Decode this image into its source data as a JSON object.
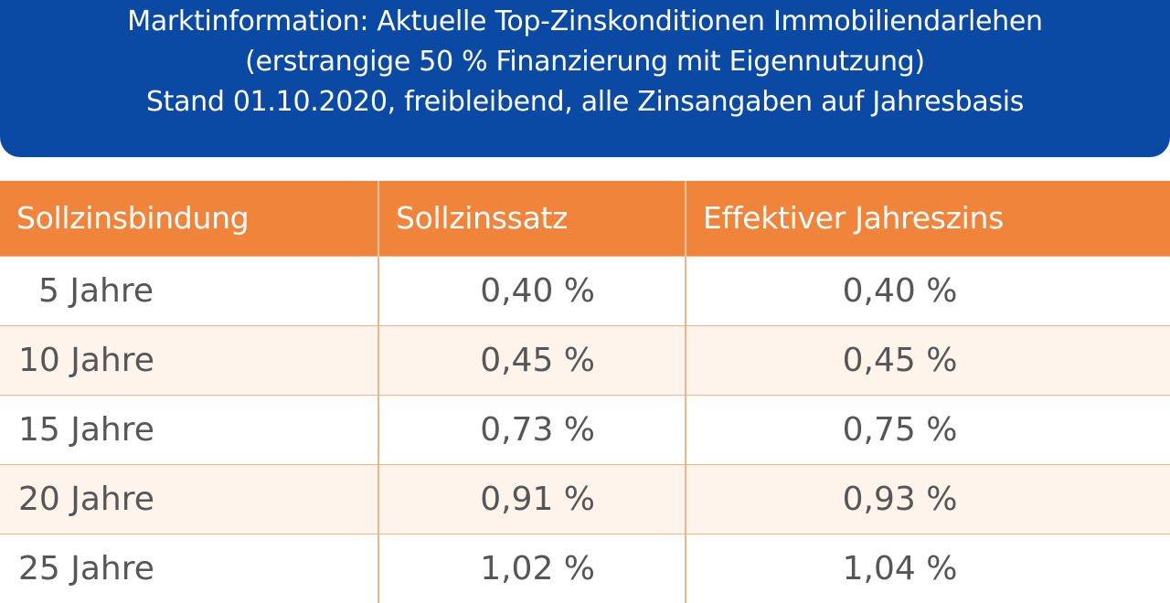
{
  "banner": {
    "line1": "Marktinformation: Aktuelle Top-Zinskonditionen Immobiliendarlehen",
    "line2": "(erstrangige 50 % Finanzierung mit Eigennutzung)",
    "line3": "Stand 01.10.2020, freibleibend, alle Zinsangaben auf Jahresbasis"
  },
  "colors": {
    "banner_background": "#0a4aa4",
    "header_background": "#f0843a",
    "alt_row_background": "#fef4ec",
    "cell_text": "#565656"
  },
  "table": {
    "headers": [
      "Sollzinsbindung",
      "Sollzinssatz",
      "Effektiver Jahreszins"
    ],
    "rows": [
      {
        "term": "5 Jahre",
        "nominal": "0,40 %",
        "effective": "0,40 %"
      },
      {
        "term": "10 Jahre",
        "nominal": "0,45 %",
        "effective": "0,45 %"
      },
      {
        "term": "15 Jahre",
        "nominal": "0,73 %",
        "effective": "0,75 %"
      },
      {
        "term": "20 Jahre",
        "nominal": "0,91 %",
        "effective": "0,93 %"
      },
      {
        "term": "25 Jahre",
        "nominal": "1,02 %",
        "effective": "1,04 %"
      }
    ]
  }
}
